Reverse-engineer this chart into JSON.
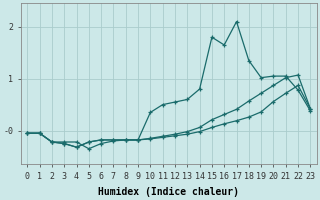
{
  "xlabel": "Humidex (Indice chaleur)",
  "xlim": [
    -0.5,
    23.5
  ],
  "ylim": [
    -0.65,
    2.45
  ],
  "ytick_labels": [
    "-0",
    "1",
    "2"
  ],
  "ytick_vals": [
    0.0,
    1.0,
    2.0
  ],
  "xticks": [
    0,
    1,
    2,
    3,
    4,
    5,
    6,
    7,
    8,
    9,
    10,
    11,
    12,
    13,
    14,
    15,
    16,
    17,
    18,
    19,
    20,
    21,
    22,
    23
  ],
  "bg_color": "#cce8e8",
  "grid_color": "#aacccc",
  "line_color": "#1a6b6b",
  "line1_x": [
    0,
    1,
    2,
    3,
    4,
    5,
    6,
    7,
    8,
    9,
    10,
    11,
    12,
    13,
    14,
    15,
    16,
    17,
    18,
    19,
    20,
    21,
    22,
    23
  ],
  "line1_y": [
    -0.05,
    -0.05,
    -0.22,
    -0.22,
    -0.22,
    -0.35,
    -0.25,
    -0.2,
    -0.18,
    -0.18,
    0.35,
    0.5,
    0.55,
    0.6,
    0.8,
    1.8,
    1.65,
    2.1,
    1.35,
    1.02,
    1.05,
    1.05,
    0.78,
    0.38
  ],
  "line2_x": [
    0,
    1,
    2,
    3,
    4,
    5,
    6,
    7,
    8,
    9,
    10,
    11,
    12,
    13,
    14,
    15,
    16,
    17,
    18,
    19,
    20,
    21,
    22,
    23
  ],
  "line2_y": [
    -0.05,
    -0.05,
    -0.22,
    -0.25,
    -0.32,
    -0.22,
    -0.18,
    -0.18,
    -0.18,
    -0.18,
    -0.16,
    -0.13,
    -0.1,
    -0.07,
    -0.02,
    0.06,
    0.13,
    0.19,
    0.26,
    0.36,
    0.56,
    0.72,
    0.87,
    0.42
  ],
  "line3_x": [
    0,
    1,
    2,
    3,
    4,
    5,
    6,
    7,
    8,
    9,
    10,
    11,
    12,
    13,
    14,
    15,
    16,
    17,
    18,
    19,
    20,
    21,
    22,
    23
  ],
  "line3_y": [
    -0.05,
    -0.05,
    -0.22,
    -0.25,
    -0.32,
    -0.22,
    -0.18,
    -0.18,
    -0.18,
    -0.18,
    -0.15,
    -0.11,
    -0.07,
    -0.02,
    0.06,
    0.21,
    0.31,
    0.41,
    0.57,
    0.72,
    0.87,
    1.02,
    1.07,
    0.42
  ],
  "marker": "+",
  "markersize": 3.5,
  "linewidth": 0.9,
  "axis_fontsize": 7,
  "tick_fontsize": 6
}
